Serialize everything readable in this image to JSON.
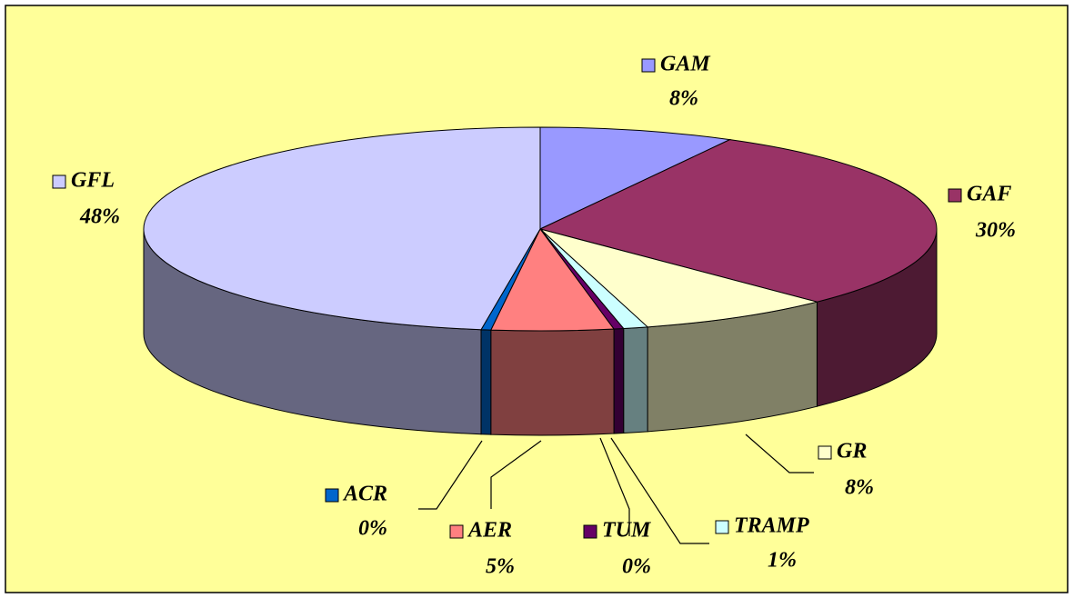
{
  "chart_data": {
    "type": "pie3d",
    "categories": [
      "GAM",
      "GAF",
      "GR",
      "TRAMP",
      "TUM",
      "AER",
      "ACR",
      "GFL"
    ],
    "values": [
      8,
      30,
      8,
      1,
      0.4,
      5,
      0.4,
      48
    ],
    "value_labels": [
      "8%",
      "30%",
      "8%",
      "1%",
      "0%",
      "5%",
      "0%",
      "48%"
    ],
    "colors": [
      "#9999ff",
      "#993366",
      "#ffffcc",
      "#ccffff",
      "#660066",
      "#ff8080",
      "#0066cc",
      "#ccccff"
    ]
  }
}
